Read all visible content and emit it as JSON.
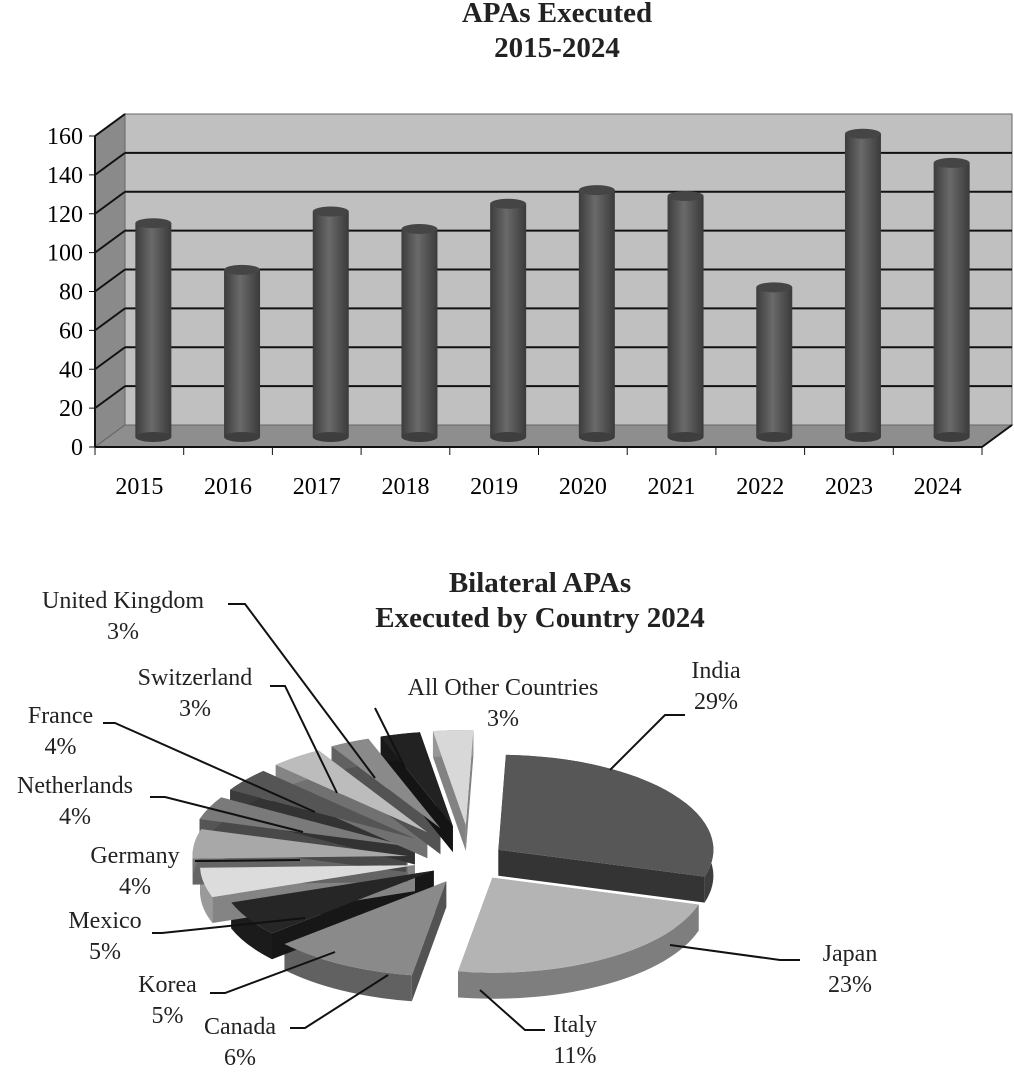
{
  "chart_data": [
    {
      "type": "bar",
      "title": [
        "APAs Executed",
        "2015-2024"
      ],
      "categories": [
        "2015",
        "2016",
        "2017",
        "2018",
        "2019",
        "2020",
        "2021",
        "2022",
        "2023",
        "2024"
      ],
      "values": [
        110,
        86,
        116,
        107,
        120,
        127,
        124,
        77,
        156,
        141
      ],
      "yticks": [
        "0",
        "20",
        "40",
        "60",
        "80",
        "100",
        "120",
        "140",
        "160"
      ],
      "ylim": [
        0,
        160
      ],
      "xlabel": "",
      "ylabel": "",
      "grid": true,
      "style": "3d-cylinder",
      "colors": {
        "bar": "#5a5a5a",
        "wall": "#c0c0c0",
        "floor": "#8e8e8e"
      }
    },
    {
      "type": "pie",
      "title": [
        "Bilateral APAs",
        "Executed by Country 2024"
      ],
      "slices": [
        {
          "name": "India",
          "value": 29,
          "label": "29%",
          "color": "#575757"
        },
        {
          "name": "Japan",
          "value": 23,
          "label": "23%",
          "color": "#b4b4b4"
        },
        {
          "name": "Italy",
          "value": 11,
          "label": "11%",
          "color": "#8a8a8a"
        },
        {
          "name": "Canada",
          "value": 6,
          "label": "6%",
          "color": "#262626"
        },
        {
          "name": "Korea",
          "value": 5,
          "label": "5%",
          "color": "#dcdcdc"
        },
        {
          "name": "Mexico",
          "value": 5,
          "label": "5%",
          "color": "#a8a8a8"
        },
        {
          "name": "Germany",
          "value": 4,
          "label": "4%",
          "color": "#7a7a7a"
        },
        {
          "name": "Netherlands",
          "value": 4,
          "label": "4%",
          "color": "#555555"
        },
        {
          "name": "France",
          "value": 4,
          "label": "4%",
          "color": "#bcbcbc"
        },
        {
          "name": "Switzerland",
          "value": 3,
          "label": "3%",
          "color": "#8a8a8a"
        },
        {
          "name": "United Kingdom",
          "value": 3,
          "label": "3%",
          "color": "#222222"
        },
        {
          "name": "All Other Countries",
          "value": 3,
          "label": "3%",
          "color": "#d8d8d8"
        }
      ]
    }
  ]
}
